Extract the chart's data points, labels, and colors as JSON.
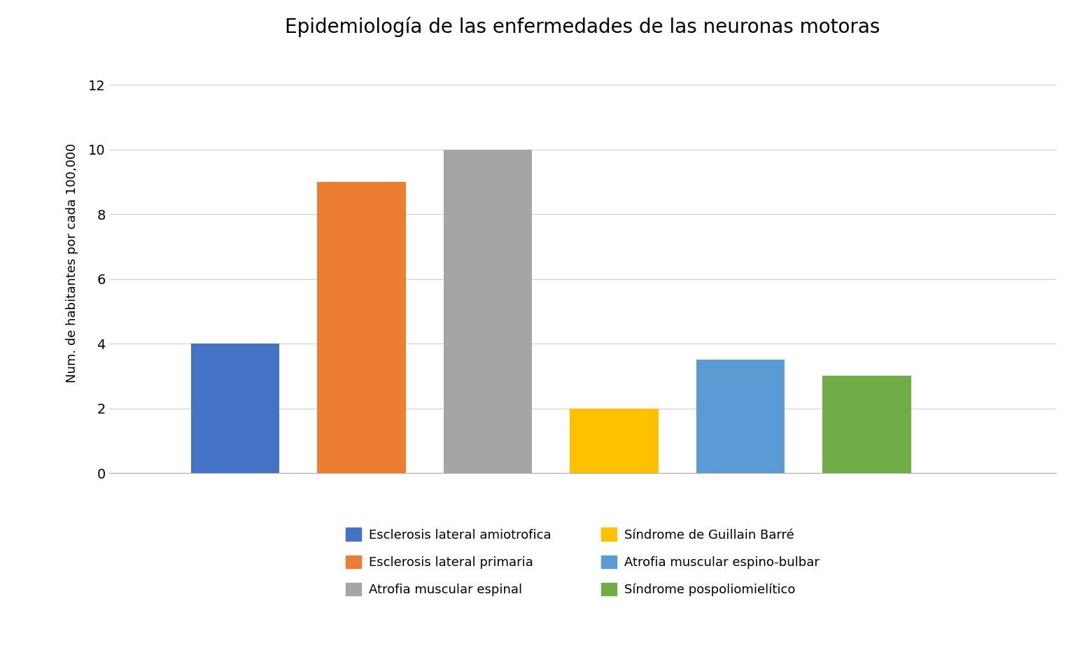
{
  "title": "Epidemiología de las enfermedades de las neuronas motoras",
  "ylabel": "Num. de habitantes por cada 100,000",
  "categories": [
    "Esclerosis lateral amiotrofica",
    "Esclerosis lateral primaria",
    "Atrofia muscular espinal",
    "Síndrome de Guillain Barré",
    "Atrofia muscular espino-bulbar",
    "Síndrome pospoliomielítico"
  ],
  "values": [
    4,
    9,
    10,
    2,
    3.5,
    3
  ],
  "colors": [
    "#4472C4",
    "#ED7D31",
    "#A5A5A5",
    "#FFC000",
    "#5B9BD5",
    "#70AD47"
  ],
  "ylim": [
    0,
    13
  ],
  "yticks": [
    0,
    2,
    4,
    6,
    8,
    10,
    12
  ],
  "title_fontsize": 20,
  "legend_fontsize": 13,
  "ylabel_fontsize": 13,
  "background_color": "#FFFFFF",
  "legend_labels": [
    "Esclerosis lateral amiotrofica",
    "Esclerosis lateral primaria",
    "Atrofia muscular espinal",
    "Síndrome de Guillain Barré",
    "Atrofia muscular espino-bulbar",
    "Síndrome pospoliomielítico"
  ],
  "legend_colors": [
    "#4472C4",
    "#ED7D31",
    "#A5A5A5",
    "#FFC000",
    "#5B9BD5",
    "#70AD47"
  ]
}
